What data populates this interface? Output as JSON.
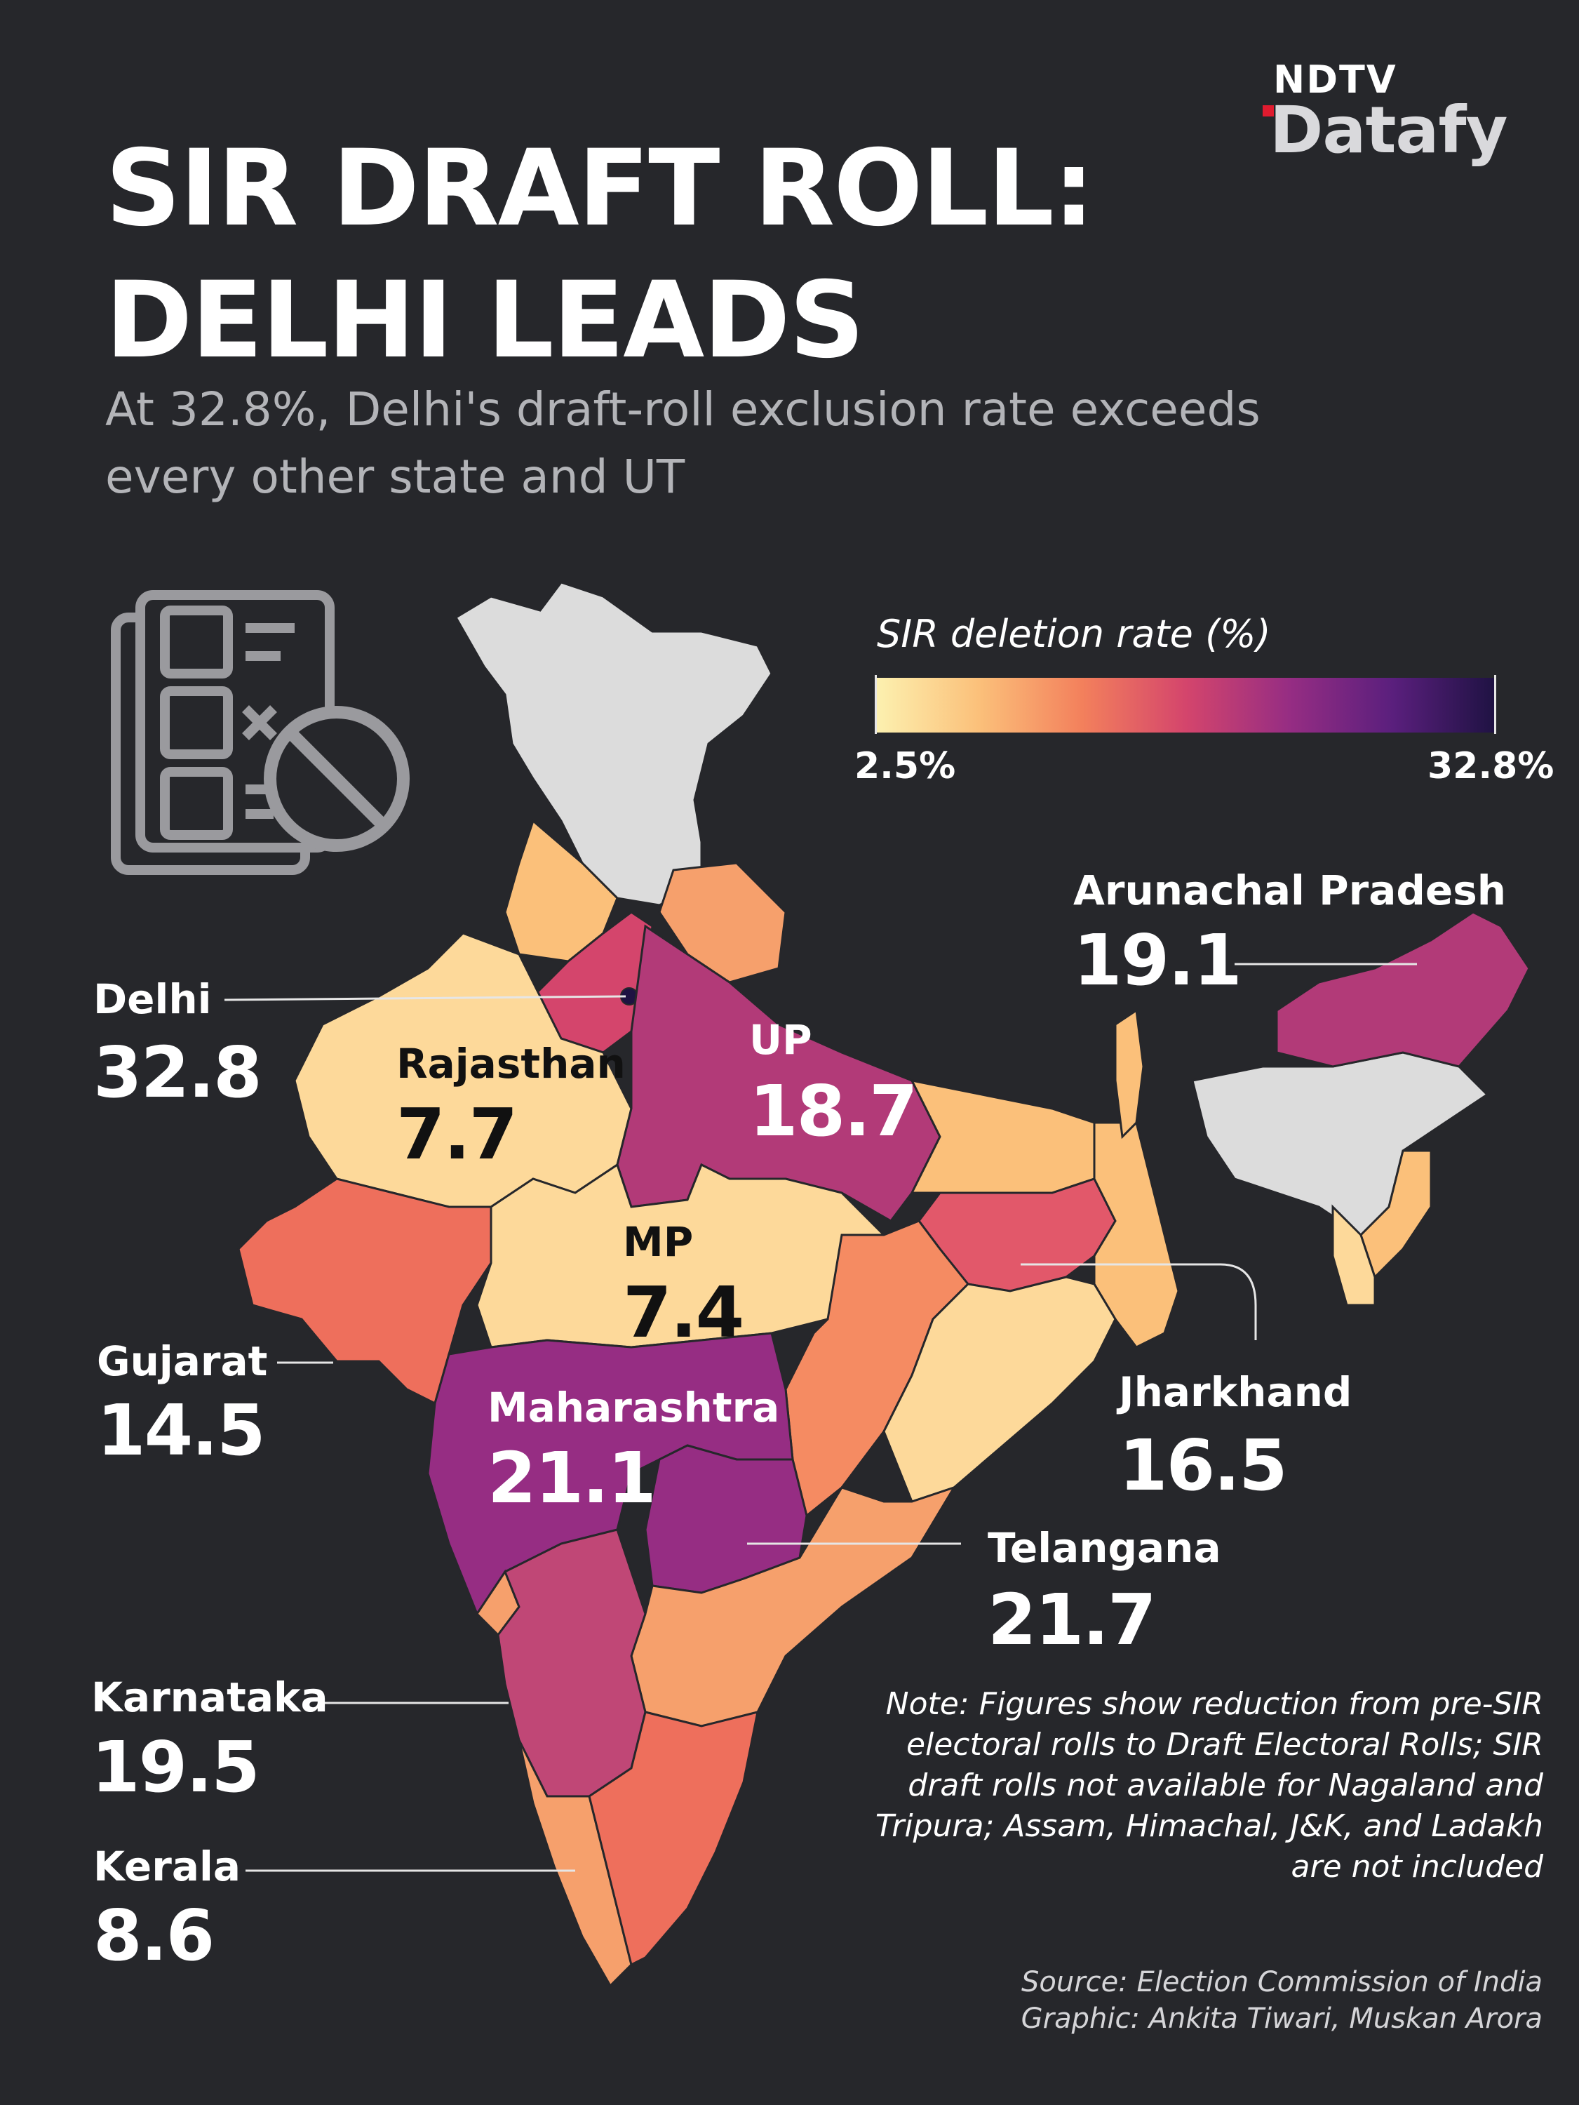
{
  "brand": {
    "top": "NDTV",
    "main": "Datafy"
  },
  "title_lines": [
    "SIR DRAFT ROLL:",
    "DELHI LEADS"
  ],
  "subtitle": "At 32.8%, Delhi's draft-roll exclusion rate exceeds every other state and UT",
  "legend": {
    "title": "SIR deletion rate (%)",
    "min_label": "2.5%",
    "max_label": "32.8%",
    "min": 2.5,
    "max": 32.8
  },
  "icon": "electoral-roll-excluded-icon",
  "colors": {
    "background": "#26272b",
    "not_included": "#dcdcdc",
    "scale": [
      "#fcf1b0",
      "#fbc07a",
      "#f3805c",
      "#d4456c",
      "#962d83",
      "#5a1f7d",
      "#1e1242"
    ]
  },
  "chart_data": {
    "type": "choropleth",
    "unit": "%",
    "labeled_regions": [
      {
        "name": "Delhi",
        "value": 32.8
      },
      {
        "name": "Rajasthan",
        "value": 7.7
      },
      {
        "name": "UP",
        "value": 18.7
      },
      {
        "name": "MP",
        "value": 7.4
      },
      {
        "name": "Gujarat",
        "value": 14.5
      },
      {
        "name": "Maharashtra",
        "value": 21.1
      },
      {
        "name": "Jharkhand",
        "value": 16.5
      },
      {
        "name": "Telangana",
        "value": 21.7
      },
      {
        "name": "Karnataka",
        "value": 19.5
      },
      {
        "name": "Kerala",
        "value": 8.6
      },
      {
        "name": "Arunachal Pradesh",
        "value": 19.1
      }
    ]
  },
  "labels": {
    "delhi": {
      "name": "Delhi",
      "value": "32.8"
    },
    "rajasthan": {
      "name": "Rajasthan",
      "value": "7.7"
    },
    "up": {
      "name": "UP",
      "value": "18.7"
    },
    "mp": {
      "name": "MP",
      "value": "7.4"
    },
    "gujarat": {
      "name": "Gujarat",
      "value": "14.5"
    },
    "maharashtra": {
      "name": "Maharashtra",
      "value": "21.1"
    },
    "jharkhand": {
      "name": "Jharkhand",
      "value": "16.5"
    },
    "telangana": {
      "name": "Telangana",
      "value": "21.7"
    },
    "karnataka": {
      "name": "Karnataka",
      "value": "19.5"
    },
    "kerala": {
      "name": "Kerala",
      "value": "8.6"
    },
    "arunachal": {
      "name": "Arunachal Pradesh",
      "value": "19.1"
    }
  },
  "note": "Note: Figures show reduction from pre-SIR electoral rolls to Draft Electoral Rolls; SIR draft rolls not available for Nagaland and Tripura; Assam, Himachal, J&K, and Ladakh are not included",
  "source": "Source: Election Commission of India",
  "graphic": "Graphic: Ankita Tiwari, Muskan Arora"
}
